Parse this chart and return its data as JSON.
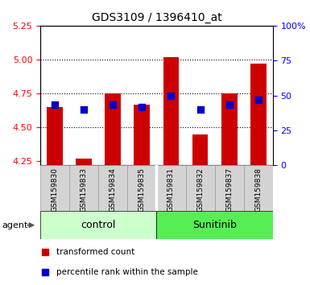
{
  "title": "GDS3109 / 1396410_at",
  "samples": [
    "GSM159830",
    "GSM159833",
    "GSM159834",
    "GSM159835",
    "GSM159831",
    "GSM159832",
    "GSM159837",
    "GSM159838"
  ],
  "bar_heights": [
    4.65,
    4.27,
    4.75,
    4.67,
    5.02,
    4.45,
    4.75,
    4.97
  ],
  "bar_bottom": 4.22,
  "blue_dot_values": [
    4.67,
    4.63,
    4.67,
    4.65,
    4.73,
    4.63,
    4.67,
    4.7
  ],
  "bar_color": "#cc0000",
  "dot_color": "#0000cc",
  "ylim_left": [
    4.22,
    5.25
  ],
  "ylim_right": [
    0,
    100
  ],
  "yticks_left": [
    4.25,
    4.5,
    4.75,
    5.0,
    5.25
  ],
  "yticks_right": [
    0,
    25,
    50,
    75,
    100
  ],
  "ytick_labels_right": [
    "0",
    "25",
    "50",
    "75",
    "100%"
  ],
  "gridlines": [
    5.0,
    4.75,
    4.5
  ],
  "control_color": "#ccffcc",
  "sunitinib_color": "#55ee55",
  "agent_arrow_color": "#555555",
  "legend_items": [
    "transformed count",
    "percentile rank within the sample"
  ],
  "legend_colors": [
    "#cc0000",
    "#0000cc"
  ],
  "figsize": [
    3.85,
    3.54
  ],
  "dpi": 100,
  "bar_width": 0.55,
  "dot_size": 30
}
